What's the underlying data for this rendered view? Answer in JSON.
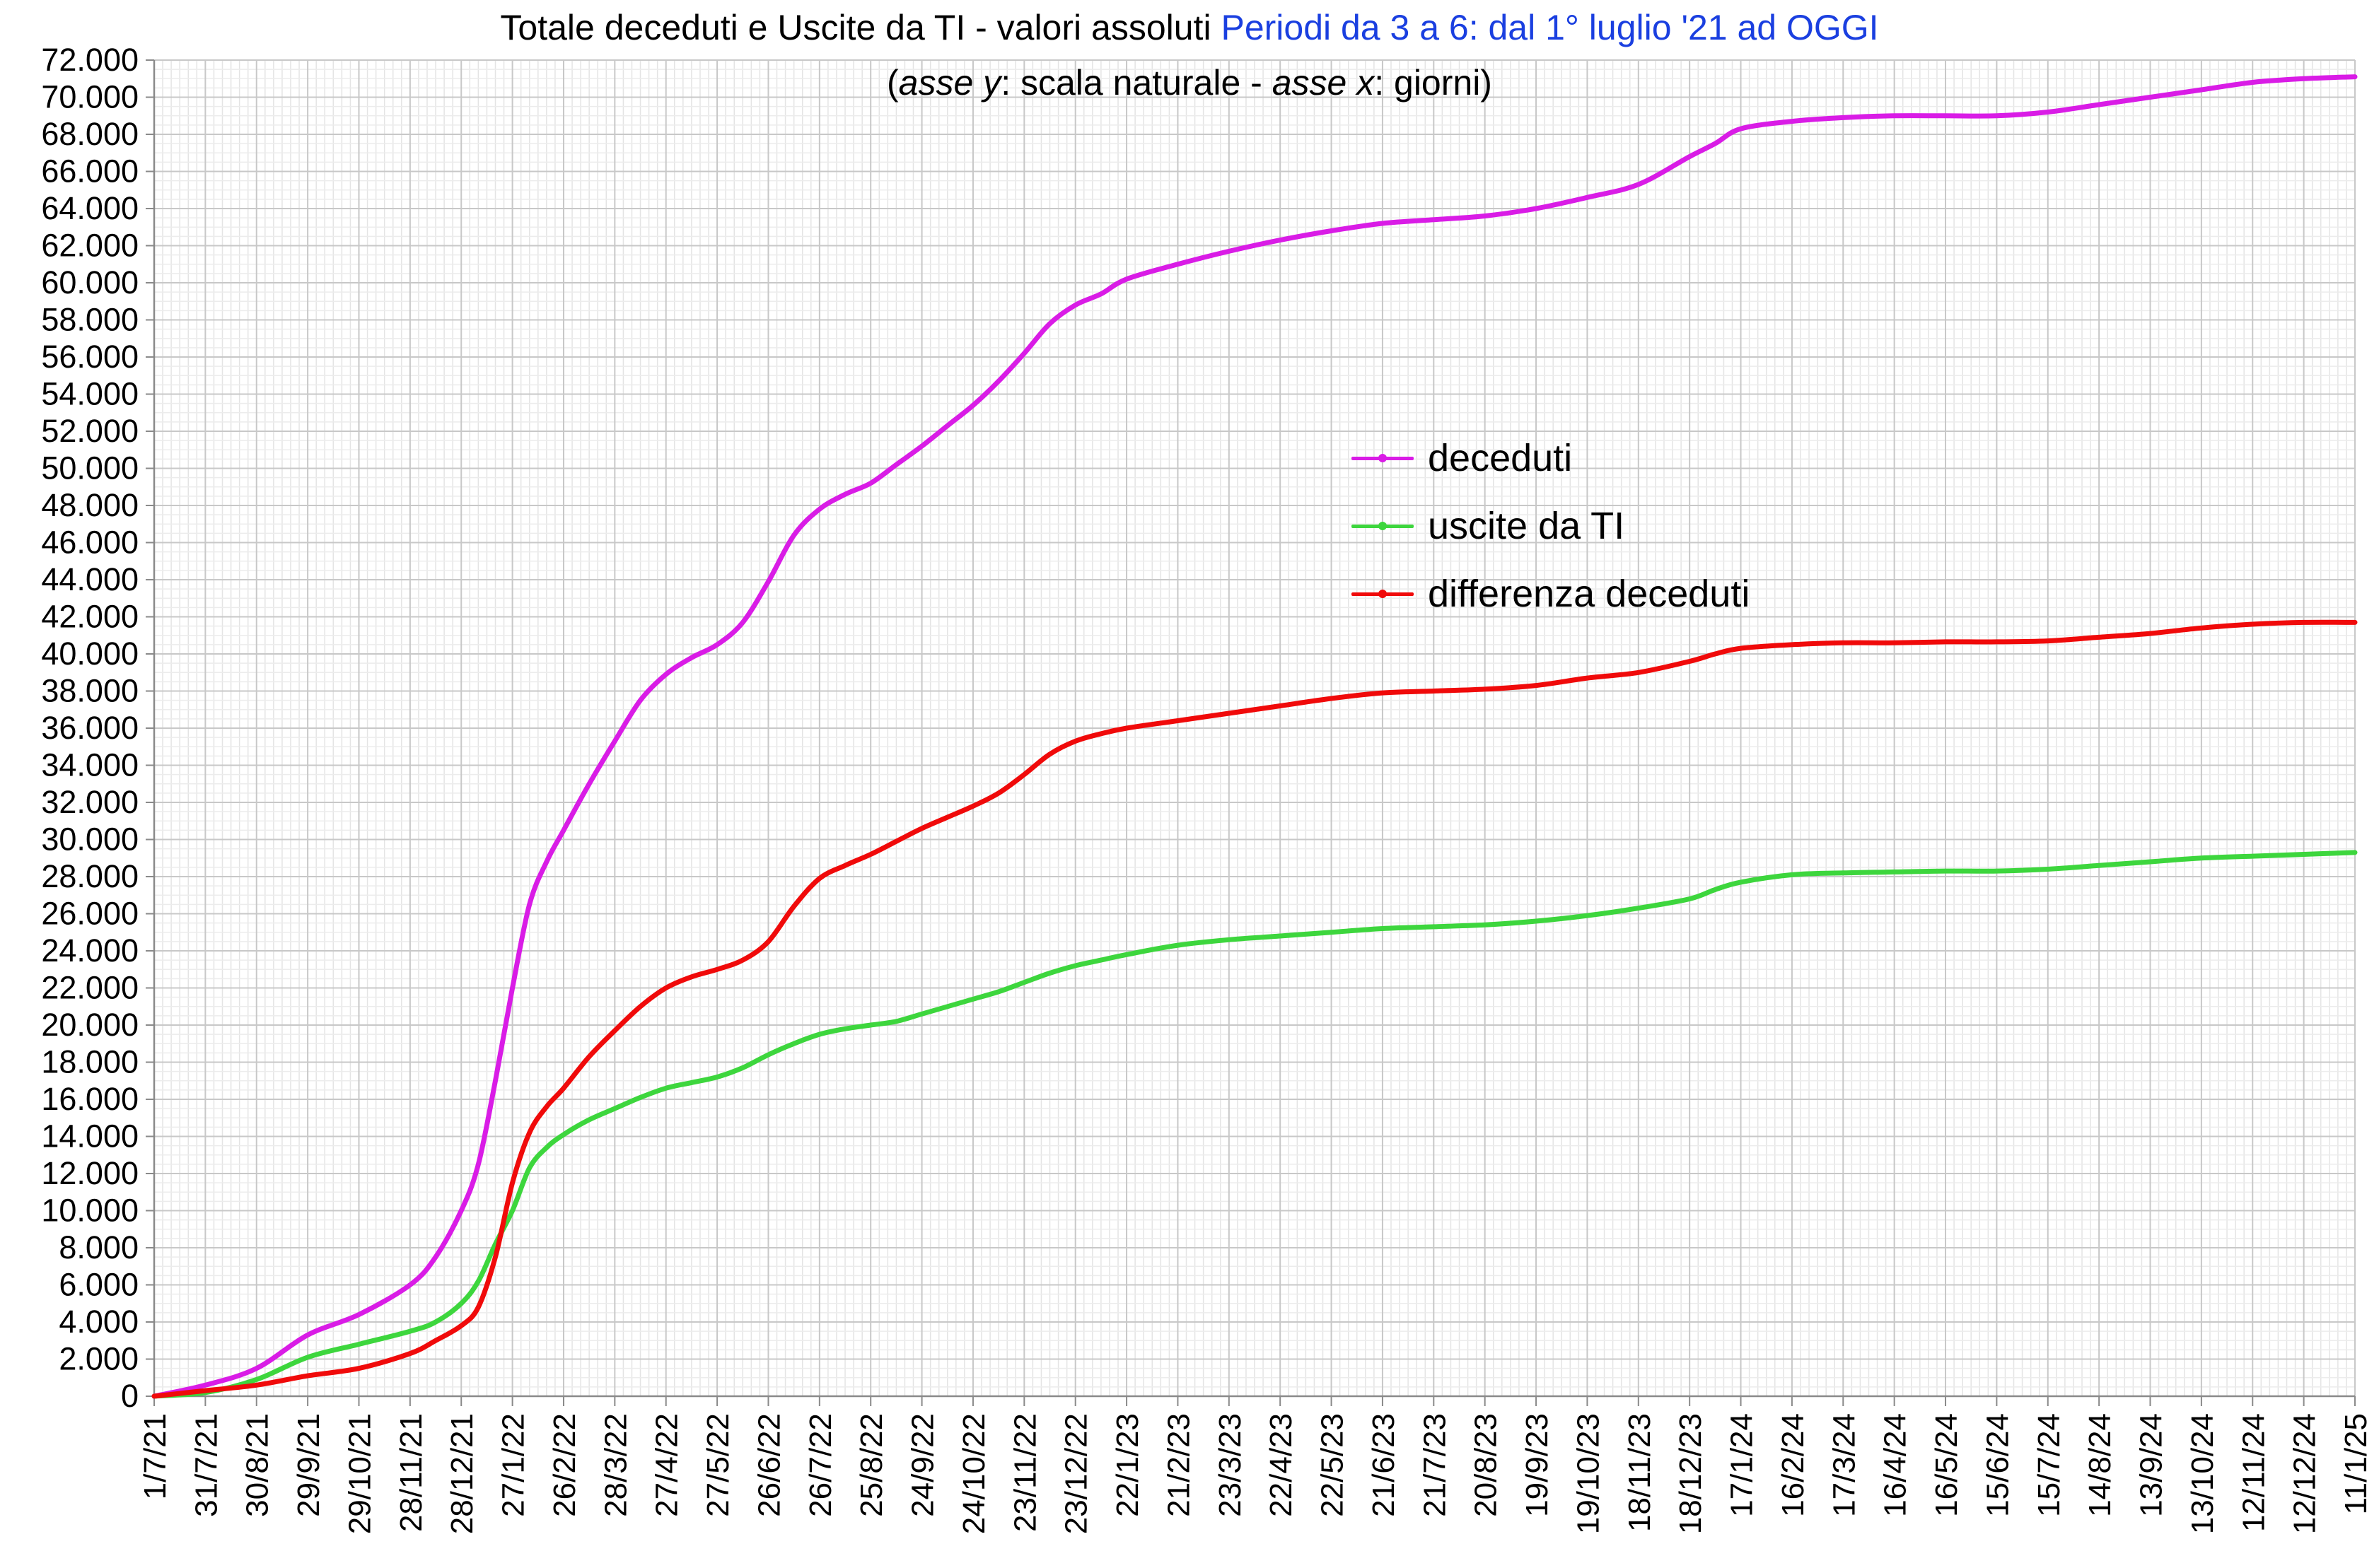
{
  "title": {
    "main": "Totale deceduti e Uscite da TI - valori assoluti",
    "highlight": "Periodi da 3 a 6: dal 1° luglio '21 ad OGGI",
    "subtitle_open": "(",
    "subtitle_y_italic": "asse y",
    "subtitle_middle": ": scala naturale - ",
    "subtitle_x_italic": "asse x",
    "subtitle_end": ":  giorni)"
  },
  "colors": {
    "deceduti": "#d91ce6",
    "uscite": "#3dd63d",
    "differenza": "#f00a0a",
    "title_highlight": "#1a3fe0"
  },
  "chart_data": {
    "type": "line",
    "x_unit": "date",
    "x_start": "2021-07-01",
    "x_end": "2025-01-11",
    "xlim": [
      "2021-07-01",
      "2025-01-11"
    ],
    "ylim": [
      0,
      72000
    ],
    "grid": true,
    "legend_position": "center-right",
    "y_ticks": [
      "0",
      "2.000",
      "4.000",
      "6.000",
      "8.000",
      "10.000",
      "12.000",
      "14.000",
      "16.000",
      "18.000",
      "20.000",
      "22.000",
      "24.000",
      "26.000",
      "28.000",
      "30.000",
      "32.000",
      "34.000",
      "36.000",
      "38.000",
      "40.000",
      "42.000",
      "44.000",
      "46.000",
      "48.000",
      "50.000",
      "52.000",
      "54.000",
      "56.000",
      "58.000",
      "60.000",
      "62.000",
      "64.000",
      "66.000",
      "68.000",
      "70.000",
      "72.000"
    ],
    "x_ticks": [
      "1/7/21",
      "31/7/21",
      "30/8/21",
      "29/9/21",
      "29/10/21",
      "28/11/21",
      "28/12/21",
      "27/1/22",
      "26/2/22",
      "28/3/22",
      "27/4/22",
      "27/5/22",
      "26/6/22",
      "26/7/22",
      "25/8/22",
      "24/9/22",
      "24/10/22",
      "23/11/22",
      "23/12/22",
      "22/1/23",
      "21/2/23",
      "23/3/23",
      "22/4/23",
      "22/5/23",
      "21/6/23",
      "21/7/23",
      "20/8/23",
      "19/9/23",
      "19/10/23",
      "18/11/23",
      "18/12/23",
      "17/1/24",
      "16/2/24",
      "17/3/24",
      "16/4/24",
      "16/5/24",
      "15/6/24",
      "15/7/24",
      "14/8/24",
      "13/9/24",
      "13/10/24",
      "12/11/24",
      "12/12/24",
      "11/1/25"
    ],
    "x": [
      "2021-07-01",
      "2021-07-31",
      "2021-08-30",
      "2021-09-29",
      "2021-10-29",
      "2021-11-28",
      "2021-12-13",
      "2021-12-28",
      "2022-01-07",
      "2022-01-17",
      "2022-01-27",
      "2022-02-06",
      "2022-02-16",
      "2022-02-26",
      "2022-03-13",
      "2022-03-28",
      "2022-04-12",
      "2022-04-27",
      "2022-05-12",
      "2022-05-27",
      "2022-06-11",
      "2022-06-26",
      "2022-07-11",
      "2022-07-26",
      "2022-08-10",
      "2022-08-25",
      "2022-09-09",
      "2022-09-24",
      "2022-10-09",
      "2022-10-24",
      "2022-11-08",
      "2022-11-23",
      "2022-12-08",
      "2022-12-23",
      "2023-01-07",
      "2023-01-22",
      "2023-02-21",
      "2023-03-23",
      "2023-04-22",
      "2023-05-22",
      "2023-06-21",
      "2023-07-21",
      "2023-08-20",
      "2023-09-19",
      "2023-10-19",
      "2023-11-18",
      "2023-12-18",
      "2024-01-02",
      "2024-01-17",
      "2024-02-16",
      "2024-03-17",
      "2024-04-16",
      "2024-05-16",
      "2024-06-15",
      "2024-07-15",
      "2024-08-14",
      "2024-09-13",
      "2024-10-13",
      "2024-11-12",
      "2024-12-12",
      "2025-01-11"
    ],
    "series": [
      {
        "name": "deceduti",
        "values": [
          0,
          600,
          1500,
          3300,
          4400,
          6000,
          7500,
          10000,
          12500,
          17000,
          22000,
          26500,
          28800,
          30500,
          33000,
          35300,
          37500,
          38900,
          39800,
          40500,
          41700,
          43900,
          46400,
          47800,
          48600,
          49200,
          50200,
          51200,
          52300,
          53400,
          54700,
          56200,
          57800,
          58800,
          59400,
          60200,
          61000,
          61700,
          62300,
          62800,
          63200,
          63400,
          63600,
          64000,
          64600,
          65300,
          66800,
          67500,
          68300,
          68700,
          68900,
          69000,
          69000,
          69000,
          69200,
          69600,
          70000,
          70400,
          70800,
          71000,
          71100
        ]
      },
      {
        "name": "uscite da TI",
        "values": [
          0,
          200,
          900,
          2100,
          2800,
          3500,
          4000,
          5000,
          6200,
          8200,
          10000,
          12300,
          13400,
          14100,
          14900,
          15500,
          16100,
          16600,
          16900,
          17200,
          17700,
          18400,
          19000,
          19500,
          19800,
          20000,
          20200,
          20600,
          21000,
          21400,
          21800,
          22300,
          22800,
          23200,
          23500,
          23800,
          24300,
          24600,
          24800,
          25000,
          25200,
          25300,
          25400,
          25600,
          25900,
          26300,
          26800,
          27300,
          27700,
          28100,
          28200,
          28250,
          28300,
          28300,
          28400,
          28600,
          28800,
          29000,
          29100,
          29200,
          29300
        ]
      },
      {
        "name": "differenza deceduti",
        "values": [
          0,
          300,
          600,
          1100,
          1500,
          2300,
          3000,
          3800,
          4800,
          7500,
          11500,
          14200,
          15600,
          16600,
          18300,
          19700,
          21000,
          22000,
          22600,
          23000,
          23500,
          24500,
          26400,
          27900,
          28600,
          29200,
          29900,
          30600,
          31200,
          31800,
          32500,
          33500,
          34600,
          35300,
          35700,
          36000,
          36400,
          36800,
          37200,
          37600,
          37900,
          38000,
          38100,
          38300,
          38700,
          39000,
          39600,
          40000,
          40300,
          40500,
          40600,
          40600,
          40650,
          40650,
          40700,
          40900,
          41100,
          41400,
          41600,
          41700,
          41700
        ]
      }
    ]
  }
}
